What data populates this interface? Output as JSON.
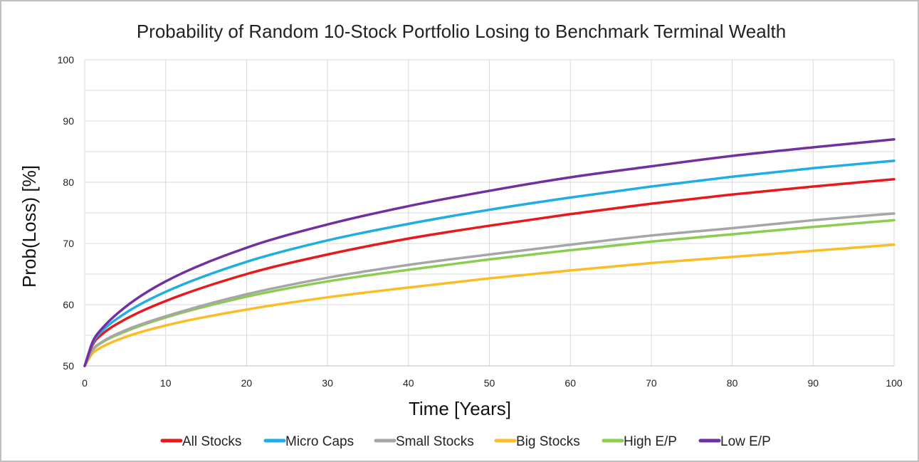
{
  "chart_data": {
    "type": "line",
    "title": "Probability of Random 10-Stock Portfolio Losing to Benchmark Terminal Wealth",
    "xlabel": "Time [Years]",
    "ylabel": "Prob(Loss) [%]",
    "xlim": [
      0,
      100
    ],
    "ylim": [
      50,
      100
    ],
    "xticks": [
      0,
      10,
      20,
      30,
      40,
      50,
      60,
      70,
      80,
      90,
      100
    ],
    "yticks": [
      50,
      60,
      70,
      80,
      90,
      100
    ],
    "grid": true,
    "legend_position": "bottom",
    "x": [
      0,
      1,
      2,
      5,
      10,
      20,
      30,
      40,
      50,
      60,
      70,
      80,
      90,
      100
    ],
    "series": [
      {
        "name": "All Stocks",
        "color": "#e8191c",
        "values": [
          50,
          53.5,
          55.0,
          57.6,
          60.6,
          65.0,
          68.2,
          70.8,
          72.9,
          74.8,
          76.5,
          78.0,
          79.3,
          80.5
        ]
      },
      {
        "name": "Micro Caps",
        "color": "#1eaee4",
        "values": [
          50,
          53.8,
          55.5,
          58.6,
          62.1,
          67.0,
          70.5,
          73.2,
          75.5,
          77.5,
          79.3,
          80.9,
          82.3,
          83.5
        ]
      },
      {
        "name": "Small Stocks",
        "color": "#a6a6a6",
        "values": [
          50,
          52.7,
          53.8,
          55.8,
          58.1,
          61.7,
          64.4,
          66.5,
          68.2,
          69.8,
          71.3,
          72.5,
          73.8,
          74.9
        ]
      },
      {
        "name": "Big Stocks",
        "color": "#fbbd26",
        "values": [
          50,
          52.1,
          53.0,
          54.7,
          56.6,
          59.2,
          61.2,
          62.8,
          64.3,
          65.6,
          66.8,
          67.8,
          68.8,
          69.8
        ]
      },
      {
        "name": "High E/P",
        "color": "#8ccc4f",
        "values": [
          50,
          52.6,
          53.7,
          55.6,
          57.9,
          61.3,
          63.8,
          65.7,
          67.4,
          68.9,
          70.3,
          71.5,
          72.7,
          73.8
        ]
      },
      {
        "name": "Low E/P",
        "color": "#7030a0",
        "values": [
          50,
          54.0,
          55.9,
          59.6,
          63.8,
          69.3,
          73.1,
          76.1,
          78.6,
          80.8,
          82.6,
          84.3,
          85.7,
          87.0
        ]
      }
    ]
  }
}
